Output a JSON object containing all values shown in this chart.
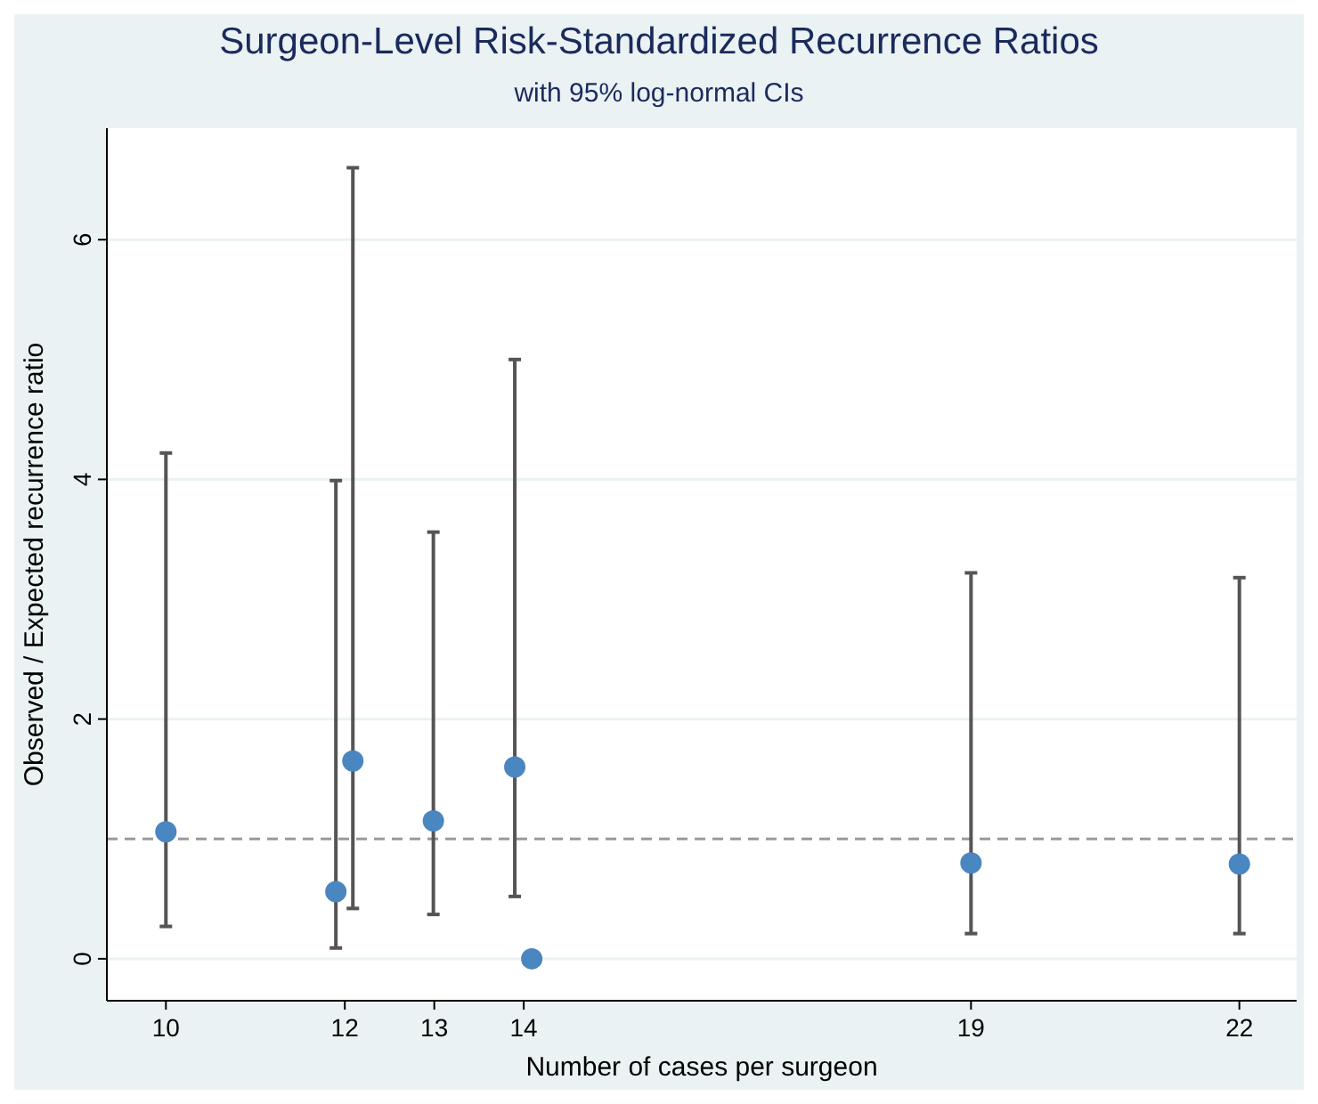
{
  "chart_data": {
    "type": "scatter",
    "title": "Surgeon-Level Risk-Standardized Recurrence Ratios",
    "subtitle": "with 95% log-normal CIs",
    "xlabel": "Number of cases per surgeon",
    "ylabel": "Observed / Expected recurrence ratio",
    "xlim": [
      9.34,
      22.64
    ],
    "ylim": [
      -0.35,
      6.93
    ],
    "xticks": [
      10,
      12,
      13,
      14,
      19,
      22
    ],
    "yticks": [
      0,
      2,
      4,
      6
    ],
    "grid": "y",
    "marker": "circle",
    "ref_lines": [
      {
        "axis": "y",
        "value": 1,
        "color": "#999999",
        "line_style": "dashed"
      }
    ],
    "series": [
      {
        "color": "#4a86c0",
        "x": [
          10,
          11.9,
          12.09,
          12.99,
          13.9,
          14.09,
          19,
          22
        ],
        "values": [
          1.06,
          0.56,
          1.65,
          1.15,
          1.6,
          0,
          0.8,
          0.79
        ],
        "errors": [
          [
            0.27,
            4.22
          ],
          [
            0.09,
            3.99
          ],
          [
            0.42,
            6.6
          ],
          [
            0.37,
            3.56
          ],
          [
            0.52,
            5.0
          ],
          null,
          [
            0.21,
            3.22
          ],
          [
            0.21,
            3.18
          ]
        ]
      }
    ]
  }
}
